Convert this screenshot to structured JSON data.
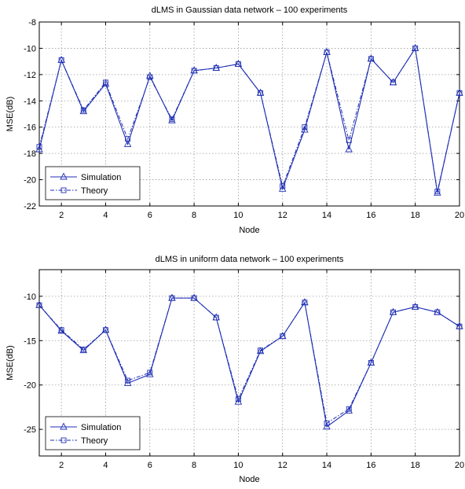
{
  "chart_data": [
    {
      "type": "line",
      "title": "dLMS in Gaussian data network – 100 experiments",
      "xlabel": "Node",
      "ylabel": "MSE(dB)",
      "xlim": [
        1,
        20
      ],
      "ylim": [
        -22,
        -8
      ],
      "xticks": [
        2,
        4,
        6,
        8,
        10,
        12,
        14,
        16,
        18,
        20
      ],
      "yticks": [
        -22,
        -20,
        -18,
        -16,
        -14,
        -12,
        -10,
        -8
      ],
      "grid": true,
      "legend_position": "bottom-left",
      "x": [
        1,
        2,
        3,
        4,
        5,
        6,
        7,
        8,
        9,
        10,
        11,
        12,
        13,
        14,
        15,
        16,
        17,
        18,
        19,
        20
      ],
      "series": [
        {
          "name": "Simulation",
          "marker": "triangle",
          "values": [
            -17.7,
            -10.9,
            -14.8,
            -12.7,
            -17.3,
            -12.1,
            -15.5,
            -11.7,
            -11.5,
            -11.2,
            -13.4,
            -20.7,
            -16.2,
            -10.3,
            -17.7,
            -10.8,
            -12.6,
            -10.0,
            -21.0,
            -13.4
          ]
        },
        {
          "name": "Theory",
          "marker": "square",
          "values": [
            -17.5,
            -10.9,
            -14.7,
            -12.6,
            -16.9,
            -12.2,
            -15.4,
            -11.7,
            -11.5,
            -11.2,
            -13.4,
            -20.5,
            -16.0,
            -10.3,
            -17.0,
            -10.8,
            -12.6,
            -10.0,
            -20.9,
            -13.4
          ]
        }
      ]
    },
    {
      "type": "line",
      "title": "dLMS in uniform data network – 100 experiments",
      "xlabel": "Node",
      "ylabel": "MSE(dB)",
      "xlim": [
        1,
        20
      ],
      "ylim": [
        -28,
        -7
      ],
      "xticks": [
        2,
        4,
        6,
        8,
        10,
        12,
        14,
        16,
        18,
        20
      ],
      "yticks": [
        -25,
        -20,
        -15,
        -10
      ],
      "grid": true,
      "legend_position": "bottom-left",
      "x": [
        1,
        2,
        3,
        4,
        5,
        6,
        7,
        8,
        9,
        10,
        11,
        12,
        13,
        14,
        15,
        16,
        17,
        18,
        19,
        20
      ],
      "series": [
        {
          "name": "Simulation",
          "marker": "triangle",
          "values": [
            -11.0,
            -13.9,
            -16.1,
            -13.8,
            -19.8,
            -18.8,
            -10.2,
            -10.2,
            -12.4,
            -21.9,
            -16.2,
            -14.5,
            -10.7,
            -24.7,
            -22.9,
            -17.5,
            -11.8,
            -11.2,
            -11.8,
            -13.4
          ]
        },
        {
          "name": "Theory",
          "marker": "square",
          "values": [
            -11.0,
            -13.8,
            -16.0,
            -13.8,
            -19.5,
            -18.6,
            -10.2,
            -10.2,
            -12.4,
            -21.6,
            -16.1,
            -14.5,
            -10.7,
            -24.3,
            -22.7,
            -17.5,
            -11.8,
            -11.2,
            -11.8,
            -13.4
          ]
        }
      ]
    }
  ],
  "colors": {
    "line": "#1f2fb4",
    "grid": "#9a9a9a",
    "axes": "#000000",
    "background": "#ffffff"
  }
}
